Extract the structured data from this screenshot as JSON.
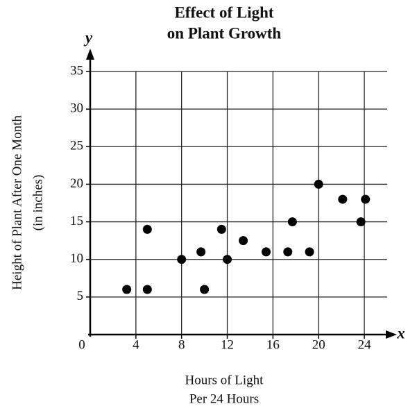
{
  "chart_data": {
    "type": "scatter",
    "title": [
      "Effect of Light",
      "on Plant Growth"
    ],
    "x_axis_label": [
      "Hours of Light",
      "Per 24 Hours"
    ],
    "y_axis_label": [
      "Height of Plant After One Month",
      "(in inches)"
    ],
    "x_axis_letter": "x",
    "y_axis_letter": "y",
    "x": [
      3.2,
      5,
      5,
      8,
      9.7,
      10,
      11.5,
      12,
      13.4,
      15.4,
      17.3,
      17.7,
      19.2,
      20,
      22.1,
      23.7,
      24.1
    ],
    "values": [
      6,
      14,
      6,
      10,
      11,
      6,
      14,
      10,
      12.5,
      11,
      11,
      15,
      11,
      20,
      18,
      15,
      18
    ],
    "color": "#000000",
    "xlim": [
      0,
      26
    ],
    "ylim": [
      0,
      35
    ],
    "xticks": [
      0,
      4,
      8,
      12,
      16,
      20,
      24
    ],
    "yticks": [
      5,
      10,
      15,
      20,
      25,
      30,
      35
    ],
    "grid": true
  }
}
